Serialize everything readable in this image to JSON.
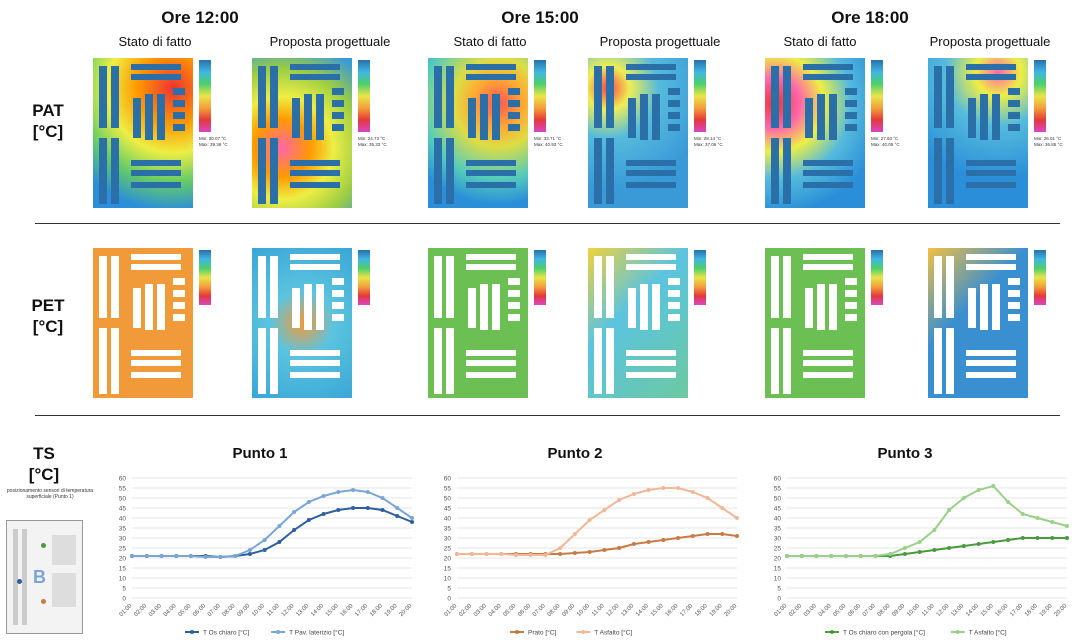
{
  "columns": [
    {
      "time": "Ore 12:00",
      "left": "Stato di fatto",
      "right": "Proposta progettuale"
    },
    {
      "time": "Ore 15:00",
      "left": "Stato di fatto",
      "right": "Proposta progettuale"
    },
    {
      "time": "Ore 18:00",
      "left": "Stato di fatto",
      "right": "Proposta progettuale"
    }
  ],
  "rows": {
    "pat": {
      "label": "PAT",
      "unit": "[°C]"
    },
    "pet": {
      "label": "PET",
      "unit": "[°C]"
    },
    "ts": {
      "label": "TS",
      "unit": "[°C]"
    }
  },
  "legend_scales": {
    "pat": [
      {
        "min": "Min: 30.07 °C",
        "max": "Max: 39.36 °C"
      },
      {
        "min": "Min: 24.73 °C",
        "max": "Max: 35.33 °C"
      },
      {
        "min": "Min: 33.71 °C",
        "max": "Max: 40.93 °C"
      },
      {
        "min": "Min: 28.14 °C",
        "max": "Max: 37.06 °C"
      },
      {
        "min": "Min: 27.93 °C",
        "max": "Max: 40.05 °C"
      },
      {
        "min": "Min: 26.01 °C",
        "max": "Max: 36.85 °C"
      }
    ]
  },
  "sketch": {
    "caption": "posizionamento sensori di temperatura superficiale (Punto 1)",
    "point_label": "B"
  },
  "chart_data": [
    {
      "type": "line",
      "title": "Punto 1",
      "x": [
        "01:00",
        "02:00",
        "03:00",
        "04:00",
        "05:00",
        "06:00",
        "07:00",
        "08:00",
        "09:00",
        "10:00",
        "11:00",
        "12:00",
        "13:00",
        "14:00",
        "15:00",
        "16:00",
        "17:00",
        "18:00",
        "19:00",
        "20:00"
      ],
      "ylim": [
        0,
        60
      ],
      "yticks": [
        0,
        5,
        10,
        15,
        20,
        25,
        30,
        35,
        40,
        45,
        50,
        55,
        60
      ],
      "grid": true,
      "legend": "bottom",
      "series": [
        {
          "name": "T Os chiaro  [°C]",
          "color": "#2e5f9e",
          "values": [
            21,
            21,
            21,
            21,
            21,
            21,
            20.5,
            21,
            22,
            24,
            28,
            34,
            39,
            42,
            44,
            45,
            45,
            44,
            41,
            38
          ]
        },
        {
          "name": "T Pav. laterizio  [°C]",
          "color": "#7aa6d6",
          "values": [
            21,
            21,
            21,
            21,
            21,
            20.5,
            20.5,
            21,
            24,
            29,
            36,
            43,
            48,
            51,
            53,
            54,
            53,
            50,
            45,
            40
          ]
        }
      ]
    },
    {
      "type": "line",
      "title": "Punto 2",
      "x": [
        "01:00",
        "02:00",
        "03:00",
        "04:00",
        "05:00",
        "06:00",
        "07:00",
        "08:00",
        "09:00",
        "10:00",
        "11:00",
        "12:00",
        "13:00",
        "14:00",
        "15:00",
        "16:00",
        "17:00",
        "18:00",
        "19:00",
        "20:00"
      ],
      "ylim": [
        0,
        60
      ],
      "yticks": [
        0,
        5,
        10,
        15,
        20,
        25,
        30,
        35,
        40,
        45,
        50,
        55,
        60
      ],
      "grid": true,
      "legend": "bottom",
      "series": [
        {
          "name": "Prato  [°C]",
          "color": "#c77b45",
          "values": [
            22,
            22,
            22,
            22,
            22,
            22,
            22,
            22,
            22.5,
            23,
            24,
            25,
            27,
            28,
            29,
            30,
            31,
            32,
            32,
            31
          ]
        },
        {
          "name": "T Asfalto  [°C]",
          "color": "#f0b896",
          "values": [
            22,
            22,
            22,
            22,
            21.5,
            21.5,
            21.5,
            25,
            32,
            39,
            44,
            49,
            52,
            54,
            55,
            55,
            53,
            50,
            45,
            40
          ]
        }
      ]
    },
    {
      "type": "line",
      "title": "Punto 3",
      "x": [
        "01:00",
        "02:00",
        "03:00",
        "04:00",
        "05:00",
        "06:00",
        "07:00",
        "08:00",
        "09:00",
        "10:00",
        "11:00",
        "12:00",
        "13:00",
        "14:00",
        "15:00",
        "16:00",
        "17:00",
        "18:00",
        "19:00",
        "20:00"
      ],
      "ylim": [
        0,
        60
      ],
      "yticks": [
        0,
        5,
        10,
        15,
        20,
        25,
        30,
        35,
        40,
        45,
        50,
        55,
        60
      ],
      "grid": true,
      "legend": "bottom",
      "series": [
        {
          "name": "T Os chiaro con pergola  [°C]",
          "color": "#4a9a3e",
          "values": [
            21,
            21,
            21,
            21,
            21,
            21,
            21,
            21,
            22,
            23,
            24,
            25,
            26,
            27,
            28,
            29,
            30,
            30,
            30,
            30
          ]
        },
        {
          "name": "T Asfalto  [°C]",
          "color": "#9ad08a",
          "values": [
            21,
            21,
            21,
            21,
            21,
            21,
            21,
            22,
            25,
            28,
            34,
            44,
            50,
            54,
            56,
            48,
            42,
            40,
            38,
            36
          ]
        }
      ]
    }
  ]
}
